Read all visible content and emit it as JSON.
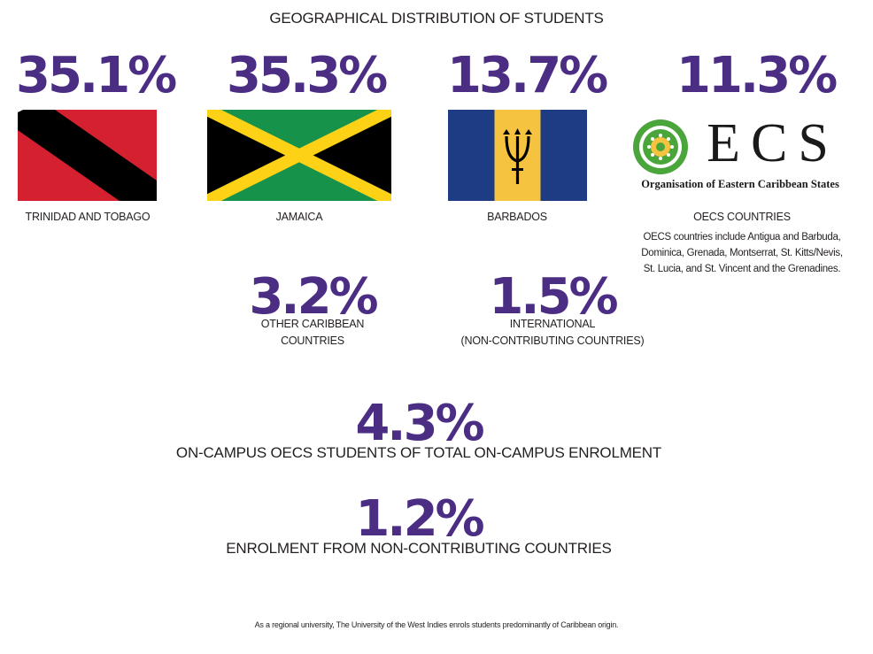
{
  "title": "GEOGRAPHICAL DISTRIBUTION OF STUDENTS",
  "chart_data": {
    "type": "table",
    "title": "GEOGRAPHICAL DISTRIBUTION OF STUDENTS",
    "categories": [
      "TRINIDAD AND TOBAGO",
      "JAMAICA",
      "BARBADOS",
      "OECS COUNTRIES",
      "OTHER CARIBBEAN COUNTRIES",
      "INTERNATIONAL (NON-CONTRIBUTING COUNTRIES)"
    ],
    "values": [
      35.1,
      35.3,
      13.7,
      11.3,
      3.2,
      1.5
    ],
    "unit": "%"
  },
  "regions": [
    {
      "pct": "35.1%",
      "label": "TRINIDAD AND TOBAGO",
      "flag": "trinidad-and-tobago-flag"
    },
    {
      "pct": "35.3%",
      "label": "JAMAICA",
      "flag": "jamaica-flag"
    },
    {
      "pct": "13.7%",
      "label": "BARBADOS",
      "flag": "barbados-flag"
    },
    {
      "pct": "11.3%",
      "label": "OECS COUNTRIES",
      "flag": "oecs-logo",
      "note": [
        "OECS countries include Antigua and Barbuda,",
        "Dominica, Grenada, Montserrat, St. Kitts/Nevis,",
        "St. Lucia, and St. Vincent and the Grenadines."
      ]
    }
  ],
  "oecs_logo": {
    "letters": "ECS",
    "subtitle": "Organisation of Eastern Caribbean States"
  },
  "other": [
    {
      "pct": "3.2%",
      "label": [
        "OTHER CARIBBEAN",
        "COUNTRIES"
      ]
    },
    {
      "pct": "1.5%",
      "label": [
        "INTERNATIONAL",
        "(NON-CONTRIBUTING COUNTRIES)"
      ]
    }
  ],
  "stats": [
    {
      "pct": "4.3%",
      "label": "ON-CAMPUS OECS STUDENTS OF TOTAL ON-CAMPUS ENROLMENT"
    },
    {
      "pct": "1.2%",
      "label": "ENROLMENT FROM NON-CONTRIBUTING COUNTRIES"
    }
  ],
  "footer": "As a regional university, The University of the West Indies enrols students predominantly of Caribbean origin.",
  "colors": {
    "accent": "#4b2e83",
    "tt_red": "#d4202f",
    "jm_green": "#16924a",
    "jm_yellow": "#fcd116",
    "bb_blue": "#1e3c84",
    "bb_gold": "#f5c33f",
    "oecs_green": "#4aa63b"
  }
}
